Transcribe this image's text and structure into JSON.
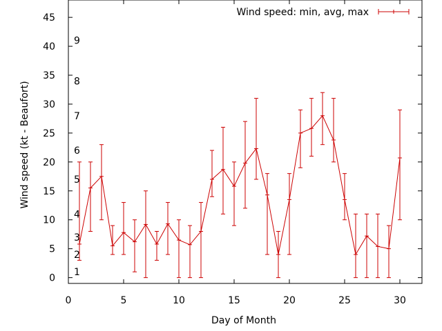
{
  "chart_data": {
    "type": "line",
    "title": "",
    "xlabel": "Day of Month",
    "ylabel": "Wind speed (kt - Beaufort)",
    "xlim": [
      0,
      32
    ],
    "ylim": [
      -1,
      48
    ],
    "x_ticks": [
      0,
      5,
      10,
      15,
      20,
      25,
      30
    ],
    "y_ticks": [
      0,
      5,
      10,
      15,
      20,
      25,
      30,
      35,
      40,
      45
    ],
    "grid": false,
    "legend_position": "top-right",
    "beaufort_labels": [
      {
        "label": "1",
        "value": 1
      },
      {
        "label": "2",
        "value": 4
      },
      {
        "label": "3",
        "value": 7
      },
      {
        "label": "4",
        "value": 11
      },
      {
        "label": "5",
        "value": 17
      },
      {
        "label": "6",
        "value": 22
      },
      {
        "label": "7",
        "value": 28
      },
      {
        "label": "8",
        "value": 34
      },
      {
        "label": "9",
        "value": 41
      }
    ],
    "series": [
      {
        "name": "Wind speed: min, avg, max",
        "color": "#cc0000",
        "x": [
          1,
          2,
          3,
          4,
          5,
          6,
          7,
          8,
          9,
          10,
          11,
          12,
          13,
          14,
          15,
          16,
          17,
          18,
          19,
          20,
          21,
          22,
          23,
          24,
          25,
          26,
          27,
          28,
          29,
          30
        ],
        "avg": [
          5.8,
          15.5,
          17.5,
          5.5,
          7.8,
          6.2,
          9.2,
          5.8,
          9.3,
          6.5,
          5.7,
          8.0,
          17.0,
          18.7,
          15.8,
          19.8,
          22.3,
          14.3,
          4.0,
          13.5,
          25.0,
          25.8,
          28.0,
          23.8,
          13.5,
          4.0,
          7.2,
          5.4,
          5.0,
          20.7
        ],
        "min": [
          3,
          8,
          10,
          4,
          4,
          1,
          0,
          3,
          4,
          0,
          0,
          0,
          14,
          11,
          9,
          12,
          17,
          4,
          0,
          4,
          19,
          21,
          23,
          20,
          10,
          0,
          0,
          0,
          0,
          10
        ],
        "max": [
          20,
          20,
          23,
          9,
          13,
          10,
          15,
          8,
          13,
          10,
          9,
          13,
          22,
          26,
          20,
          27,
          31,
          18,
          8,
          18,
          29,
          31,
          32,
          31,
          18,
          11,
          11,
          11,
          9,
          29
        ]
      }
    ]
  }
}
